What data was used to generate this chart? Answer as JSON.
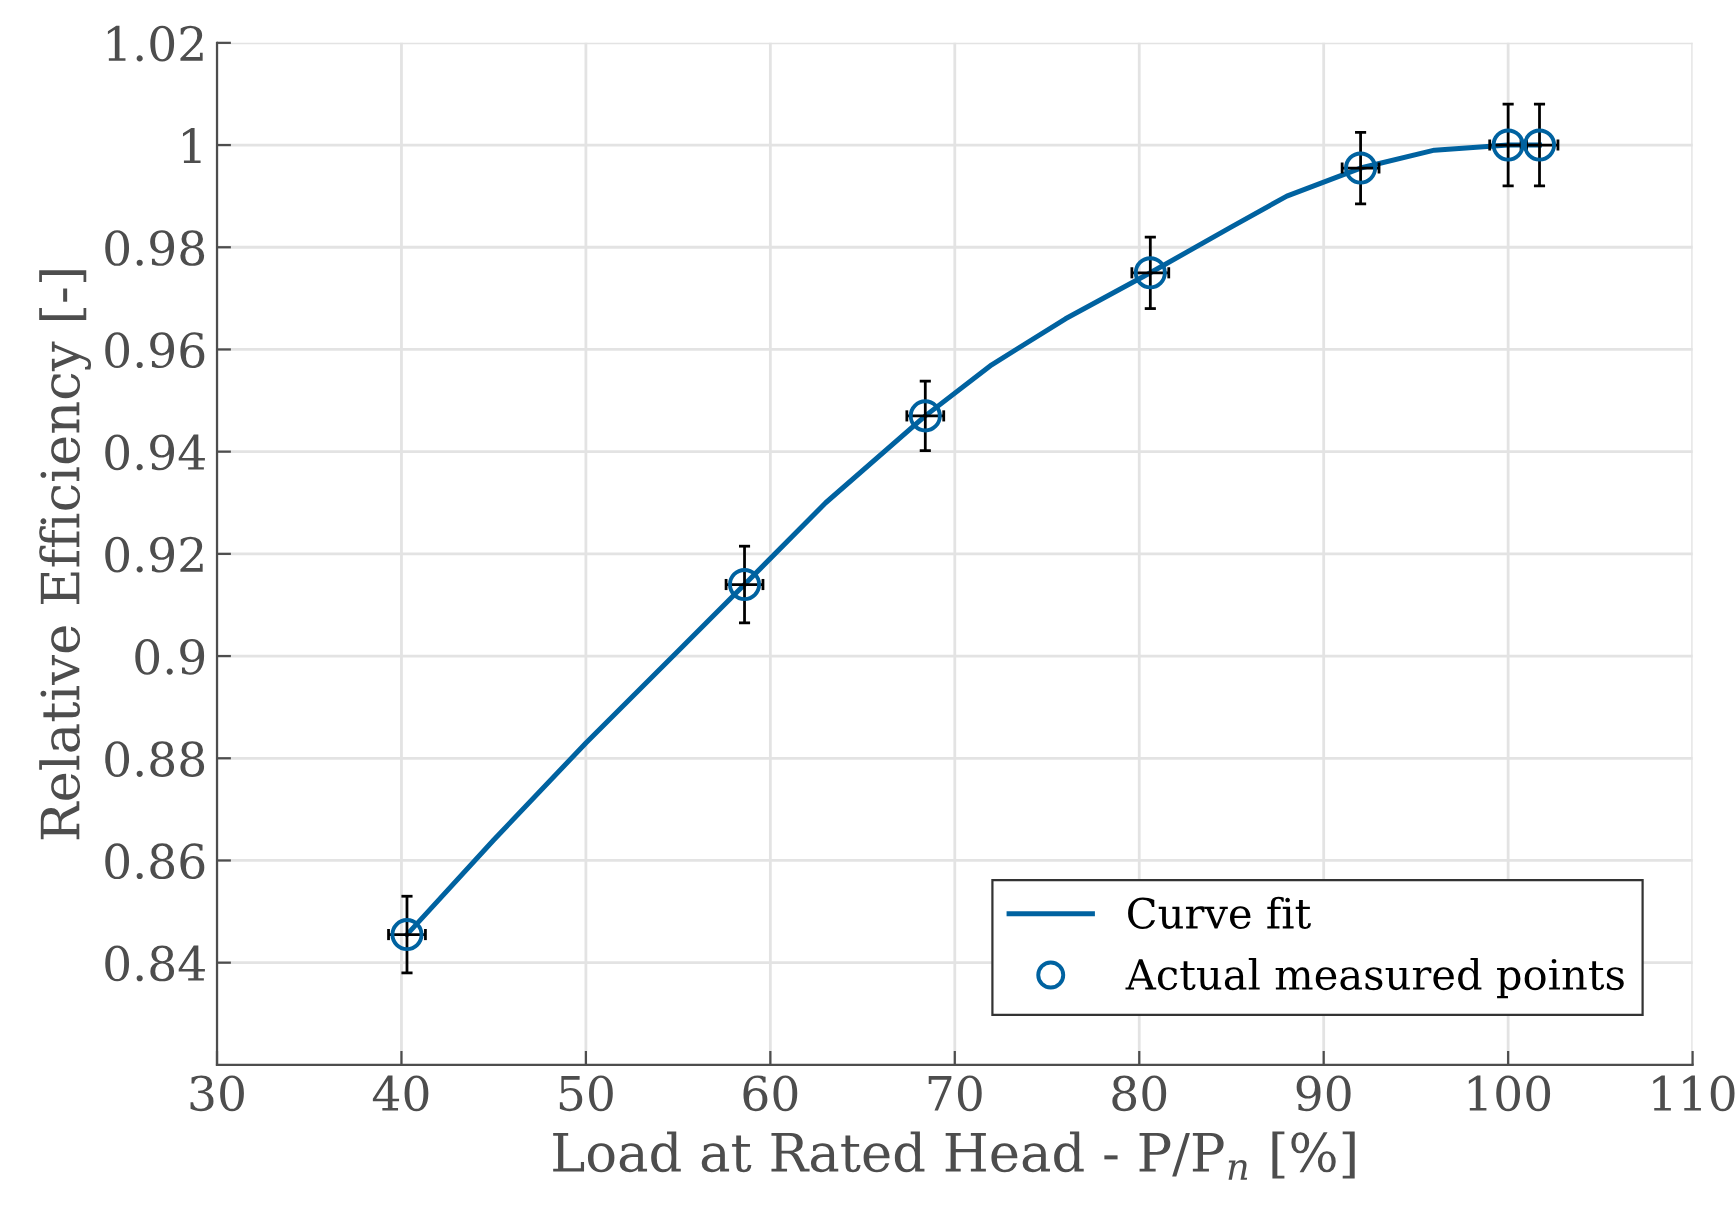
{
  "chart_data": {
    "type": "scatter",
    "xlabel": "Load at Rated Head - P/P$_{n}$ [%]",
    "ylabel": "Relative Efficiency [-]",
    "series": [
      {
        "name": "Curve fit",
        "type": "line",
        "color": "#0062a0",
        "line_style": "solid",
        "marker": "none",
        "x": [
          40.3,
          45,
          50,
          55,
          58.6,
          63,
          68.4,
          72,
          76,
          80.6,
          85,
          88,
          92,
          96,
          100,
          101.7
        ],
        "values": [
          0.8455,
          0.864,
          0.883,
          0.901,
          0.914,
          0.93,
          0.947,
          0.957,
          0.966,
          0.975,
          0.984,
          0.99,
          0.9955,
          0.999,
          1.0,
          1.0
        ]
      },
      {
        "name": "Actual measured points",
        "color": "#0062a0",
        "marker": "circle",
        "x": [
          40.3,
          58.6,
          68.4,
          80.6,
          92,
          100,
          101.7
        ],
        "values": [
          0.8455,
          0.914,
          0.947,
          0.975,
          0.9955,
          1.0,
          1.0
        ],
        "errors": [
          0.0075,
          0.0075,
          0.0068,
          0.007,
          0.007,
          0.008,
          0.008
        ],
        "xerrors": [
          1,
          1,
          1,
          1,
          1,
          1,
          1
        ]
      }
    ],
    "xlim": [
      30,
      110
    ],
    "xticks": [
      30,
      40,
      50,
      60,
      70,
      80,
      90,
      100,
      110
    ],
    "ylim": [
      0.82,
      1.02
    ],
    "yticks": [
      {
        "value": 0.84,
        "label": "0.84"
      },
      {
        "value": 0.86,
        "label": "0.86"
      },
      {
        "value": 0.88,
        "label": "0.88"
      },
      {
        "value": 0.9,
        "label": "0.9"
      },
      {
        "value": 0.92,
        "label": "0.92"
      },
      {
        "value": 0.94,
        "label": "0.94"
      },
      {
        "value": 0.96,
        "label": "0.96"
      },
      {
        "value": 0.98,
        "label": "0.98"
      },
      {
        "value": 1,
        "label": "1"
      },
      {
        "value": 1.02,
        "label": "1.02"
      }
    ],
    "grid": true,
    "legend": "bottom right"
  }
}
